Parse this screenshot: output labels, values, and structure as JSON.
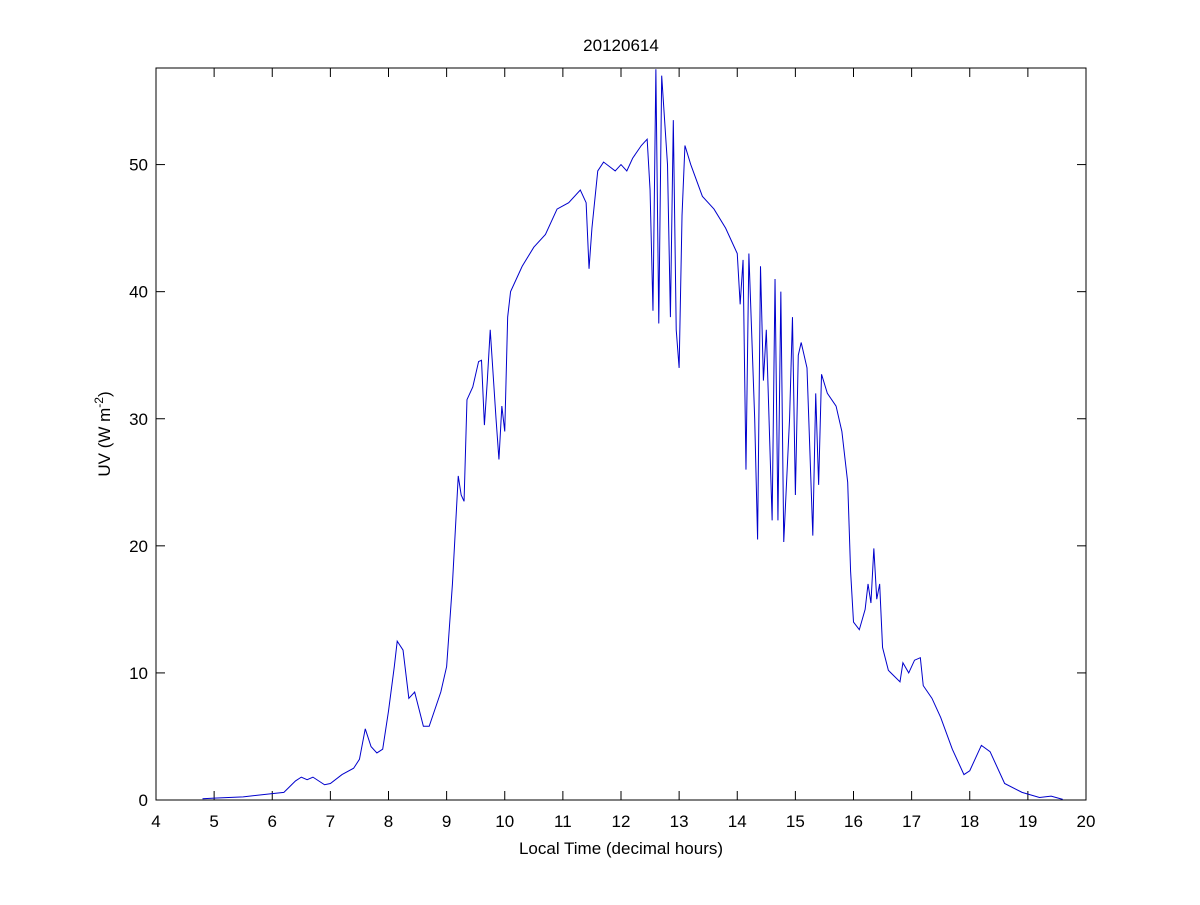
{
  "chart_data": {
    "type": "line",
    "title": "20120614",
    "xlabel": "Local Time (decimal hours)",
    "ylabel": {
      "text": "UV (W m",
      "superscript": "-2",
      "suffix": ")"
    },
    "xlim": [
      4,
      20
    ],
    "ylim": [
      0,
      57.6
    ],
    "xticks": [
      4,
      5,
      6,
      7,
      8,
      9,
      10,
      11,
      12,
      13,
      14,
      15,
      16,
      17,
      18,
      19,
      20
    ],
    "yticks": [
      0,
      10,
      20,
      30,
      40,
      50
    ],
    "grid": false,
    "x": [
      4.8,
      5.0,
      5.5,
      6.0,
      6.2,
      6.4,
      6.5,
      6.6,
      6.7,
      6.9,
      7.0,
      7.2,
      7.4,
      7.5,
      7.6,
      7.7,
      7.8,
      7.9,
      8.0,
      8.1,
      8.15,
      8.25,
      8.35,
      8.45,
      8.6,
      8.7,
      8.9,
      9.0,
      9.1,
      9.2,
      9.25,
      9.3,
      9.35,
      9.45,
      9.55,
      9.6,
      9.65,
      9.7,
      9.75,
      9.85,
      9.9,
      9.95,
      10.0,
      10.05,
      10.1,
      10.3,
      10.5,
      10.7,
      10.9,
      11.1,
      11.3,
      11.4,
      11.45,
      11.5,
      11.6,
      11.7,
      11.9,
      12.0,
      12.1,
      12.2,
      12.35,
      12.45,
      12.5,
      12.55,
      12.6,
      12.65,
      12.7,
      12.8,
      12.85,
      12.9,
      12.95,
      13.0,
      13.05,
      13.1,
      13.2,
      13.4,
      13.6,
      13.8,
      14.0,
      14.05,
      14.1,
      14.15,
      14.2,
      14.3,
      14.35,
      14.4,
      14.45,
      14.5,
      14.6,
      14.65,
      14.7,
      14.75,
      14.8,
      14.9,
      14.95,
      15.0,
      15.05,
      15.1,
      15.2,
      15.3,
      15.35,
      15.4,
      15.45,
      15.55,
      15.7,
      15.8,
      15.9,
      15.95,
      16.0,
      16.1,
      16.2,
      16.25,
      16.3,
      16.35,
      16.4,
      16.45,
      16.5,
      16.6,
      16.8,
      16.85,
      16.95,
      17.05,
      17.15,
      17.2,
      17.35,
      17.5,
      17.7,
      17.9,
      18.0,
      18.2,
      18.35,
      18.6,
      18.9,
      19.2,
      19.4,
      19.6
    ],
    "series": [
      {
        "name": "UV",
        "color": "#0000cc",
        "values": [
          0.1,
          0.15,
          0.25,
          0.5,
          0.6,
          1.5,
          1.8,
          1.6,
          1.8,
          1.2,
          1.3,
          2.0,
          2.5,
          3.2,
          5.6,
          4.2,
          3.7,
          4.0,
          7.0,
          10.5,
          12.5,
          11.8,
          8.0,
          8.5,
          5.8,
          5.8,
          8.5,
          10.5,
          17,
          25.5,
          24,
          23.5,
          31.5,
          32.5,
          34.5,
          34.6,
          29.5,
          33,
          37,
          30,
          26.8,
          31,
          29,
          38,
          40,
          42,
          43.5,
          44.5,
          46.5,
          47,
          48,
          47,
          41.8,
          45,
          49.5,
          50.2,
          49.5,
          50,
          49.5,
          50.5,
          51.5,
          52,
          48,
          38.5,
          57.5,
          37.5,
          57,
          50,
          38,
          53.5,
          37,
          34,
          46,
          51.5,
          50,
          47.5,
          46.5,
          45,
          43,
          39,
          42.5,
          26,
          43,
          30,
          20.5,
          42,
          33,
          37,
          22,
          41,
          22,
          40,
          20.3,
          30,
          38,
          24,
          35,
          36,
          34,
          20.8,
          32,
          24.8,
          33.5,
          32,
          31,
          29,
          25,
          18,
          14,
          13.4,
          15,
          17,
          15.5,
          19.8,
          15.8,
          17,
          12,
          10.2,
          9.3,
          10.8,
          10.0,
          11.0,
          11.2,
          9,
          8,
          6.5,
          4,
          2,
          2.3,
          4.3,
          3.8,
          1.3,
          0.6,
          0.2,
          0.3,
          0.05
        ]
      }
    ]
  }
}
